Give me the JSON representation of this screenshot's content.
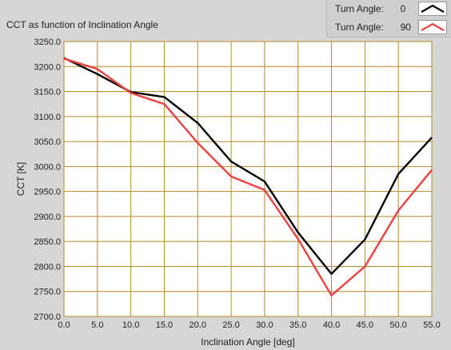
{
  "chart_data": {
    "type": "line",
    "title": "CCT as function of Inclination Angle",
    "xlabel": "Inclination Angle [deg]",
    "ylabel": "CCT [K]",
    "xlim": [
      0,
      55
    ],
    "ylim": [
      2700,
      3250
    ],
    "xticks": [
      "0.0",
      "5.0",
      "10.0",
      "15.0",
      "20.0",
      "25.0",
      "30.0",
      "35.0",
      "40.0",
      "45.0",
      "50.0",
      "55.0"
    ],
    "yticks": [
      "2700.0",
      "2750.0",
      "2800.0",
      "2850.0",
      "2900.0",
      "2950.0",
      "3000.0",
      "3050.0",
      "3100.0",
      "3150.0",
      "3200.0",
      "3250.0"
    ],
    "grid": true,
    "legend_position": "top-right",
    "x": [
      0,
      5,
      10,
      15,
      20,
      25,
      30,
      35,
      40,
      45,
      50,
      55
    ],
    "series": [
      {
        "name": "Turn Angle: 0",
        "legend_label": "Turn Angle:",
        "legend_value": "0",
        "color": "#000000",
        "values": [
          3217,
          3185,
          3149,
          3139,
          3087,
          3010,
          2970,
          2868,
          2785,
          2854,
          2985,
          3058
        ]
      },
      {
        "name": "Turn Angle: 90",
        "legend_label": "Turn Angle:",
        "legend_value": "90",
        "color": "#f04040",
        "values": [
          3216,
          3195,
          3147,
          3125,
          3047,
          2980,
          2953,
          2855,
          2742,
          2800,
          2912,
          2993
        ]
      }
    ],
    "colors": {
      "plot_background": "#ffffff",
      "grid": "#b58a2e",
      "frame": "#d6d6d6"
    }
  }
}
